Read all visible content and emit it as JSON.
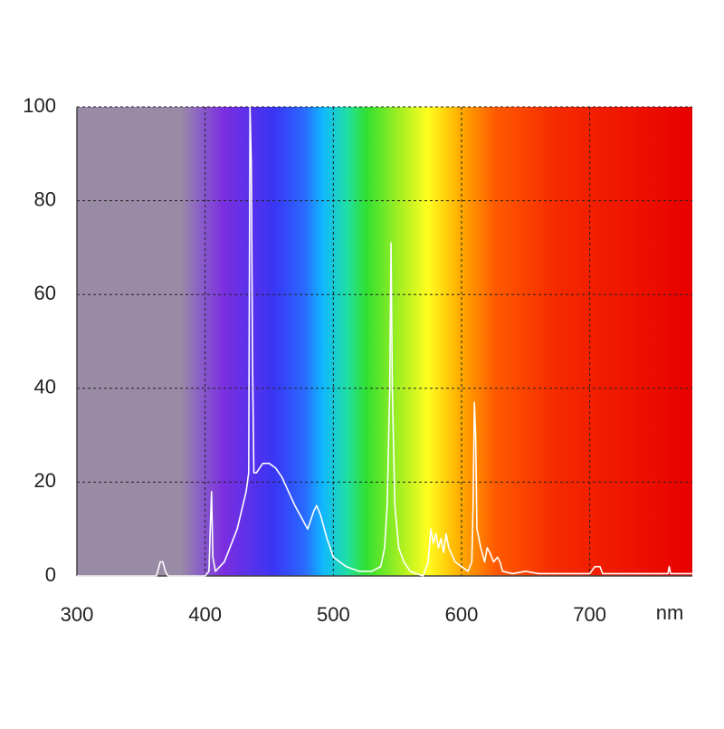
{
  "chart_data": {
    "type": "line",
    "x_label": "nm",
    "x": [
      300,
      362,
      364,
      365,
      367,
      369,
      371,
      400,
      403,
      404,
      405,
      406,
      408,
      415,
      425,
      432,
      434,
      435,
      436,
      437,
      438,
      440,
      445,
      450,
      455,
      460,
      470,
      480,
      485,
      487,
      490,
      495,
      500,
      510,
      520,
      530,
      537,
      540,
      542,
      544,
      545,
      546,
      548,
      551,
      555,
      560,
      570,
      574,
      576,
      578,
      580,
      582,
      584,
      586,
      588,
      590,
      595,
      600,
      605,
      608,
      609,
      610,
      611,
      612,
      615,
      618,
      620,
      622,
      625,
      628,
      630,
      632,
      640,
      650,
      660,
      700,
      704,
      706,
      708,
      710,
      740,
      761,
      762,
      763,
      780
    ],
    "values": [
      0,
      0,
      2,
      3,
      3,
      1,
      0,
      0,
      1,
      10,
      18,
      4,
      1,
      3,
      10,
      18,
      22,
      100,
      88,
      45,
      22,
      22,
      24,
      24,
      23,
      21,
      15,
      10,
      14,
      15,
      13,
      8,
      4,
      2,
      1,
      1,
      2,
      6,
      15,
      40,
      71,
      40,
      15,
      6,
      3,
      1,
      0,
      3,
      10,
      7,
      9,
      6,
      8,
      5,
      9,
      6,
      3,
      2,
      1,
      3,
      15,
      37,
      30,
      10,
      6,
      3,
      6,
      5,
      3,
      4,
      3,
      1,
      0.5,
      1,
      0.5,
      0.5,
      2,
      2,
      2,
      0.5,
      0.5,
      0.5,
      2,
      0.5,
      0.5
    ],
    "color": "#ffffff",
    "xlim": [
      300,
      780
    ],
    "ylim": [
      0,
      100
    ],
    "xticks": [
      300,
      400,
      500,
      600,
      700
    ],
    "yticks": [
      0,
      20,
      40,
      60,
      80,
      100
    ],
    "grid": true
  }
}
